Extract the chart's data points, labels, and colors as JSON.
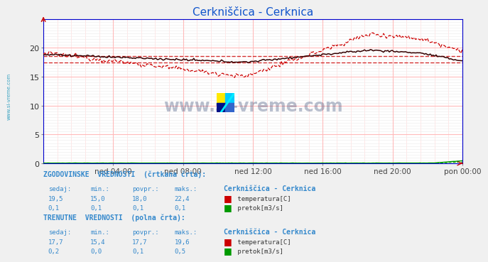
{
  "title": "Cerkniščica - Cerknica",
  "title_color": "#1155cc",
  "bg_color": "#f0f0f0",
  "plot_bg_color": "#ffffff",
  "grid_color": "#ffcccc",
  "grid_color2": "#ddddff",
  "x_labels": [
    "ned 04:00",
    "ned 08:00",
    "ned 12:00",
    "ned 16:00",
    "ned 20:00",
    "pon 00:00"
  ],
  "x_ticks_frac": [
    0.1667,
    0.3333,
    0.5,
    0.6667,
    0.8333,
    1.0
  ],
  "ylim": [
    0,
    25
  ],
  "yticks": [
    0,
    5,
    10,
    15,
    20
  ],
  "temp_color": "#cc0000",
  "flow_color": "#009900",
  "watermark_color": "#1a3060",
  "sidebar_color": "#2299bb",
  "text_blue": "#3388cc",
  "border_color": "#0000cc"
}
